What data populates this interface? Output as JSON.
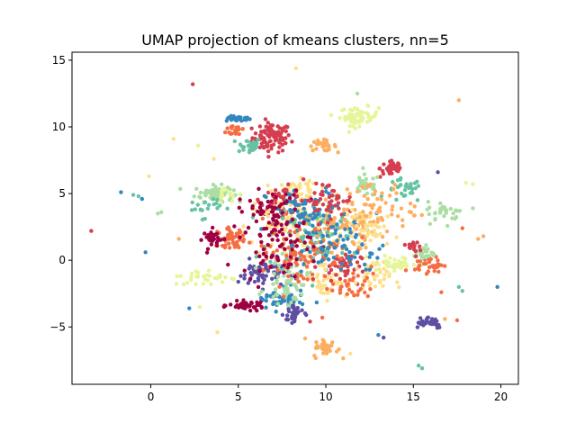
{
  "chart_data": {
    "type": "scatter",
    "title": "UMAP projection of kmeans clusters, nn=5",
    "xlabel": "",
    "ylabel": "",
    "xlim": [
      -4.5,
      21.0
    ],
    "ylim": [
      -9.3,
      15.6
    ],
    "xticks": [
      0,
      5,
      10,
      15,
      20
    ],
    "yticks": [
      -5,
      0,
      5,
      10,
      15
    ],
    "xtick_labels": [
      "0",
      "5",
      "10",
      "15",
      "20"
    ],
    "ytick_labels": [
      "−5",
      "0",
      "5",
      "10",
      "15"
    ],
    "grid": false,
    "legend": "none",
    "palette": "Spectral",
    "colors": [
      "#9e0142",
      "#d53e4f",
      "#f46d43",
      "#fdae61",
      "#fee08b",
      "#e6f598",
      "#abdda4",
      "#66c2a5",
      "#3288bd",
      "#5e4fa2"
    ],
    "clusters": [
      {
        "cx": 6.9,
        "cy": 9.2,
        "sx": 0.55,
        "sy": 0.55,
        "n": 90,
        "color": "#d53e4f"
      },
      {
        "cx": 5.0,
        "cy": 10.6,
        "sx": 0.35,
        "sy": 0.1,
        "n": 25,
        "color": "#3288bd"
      },
      {
        "cx": 5.6,
        "cy": 8.6,
        "sx": 0.35,
        "sy": 0.3,
        "n": 30,
        "color": "#66c2a5"
      },
      {
        "cx": 4.9,
        "cy": 9.8,
        "sx": 0.3,
        "sy": 0.25,
        "n": 20,
        "color": "#f46d43"
      },
      {
        "cx": 3.6,
        "cy": 5.0,
        "sx": 0.55,
        "sy": 0.3,
        "n": 70,
        "color": "#abdda4"
      },
      {
        "cx": 11.9,
        "cy": 10.8,
        "sx": 0.55,
        "sy": 0.35,
        "n": 60,
        "color": "#e6f598"
      },
      {
        "cx": 9.8,
        "cy": 8.6,
        "sx": 0.4,
        "sy": 0.2,
        "n": 30,
        "color": "#fdae61"
      },
      {
        "cx": 13.8,
        "cy": 6.9,
        "sx": 0.35,
        "sy": 0.35,
        "n": 35,
        "color": "#d53e4f"
      },
      {
        "cx": 12.3,
        "cy": 5.6,
        "sx": 0.4,
        "sy": 0.4,
        "n": 30,
        "color": "#abdda4"
      },
      {
        "cx": 14.5,
        "cy": 5.2,
        "sx": 0.5,
        "sy": 0.45,
        "n": 30,
        "color": "#66c2a5"
      },
      {
        "cx": 8.4,
        "cy": 5.2,
        "sx": 0.6,
        "sy": 0.4,
        "n": 50,
        "color": "#fee08b"
      },
      {
        "cx": 7.5,
        "cy": 4.5,
        "sx": 0.6,
        "sy": 0.5,
        "n": 60,
        "color": "#d53e4f"
      },
      {
        "cx": 8.0,
        "cy": 2.5,
        "sx": 1.3,
        "sy": 1.2,
        "n": 120,
        "color": "#fee08b"
      },
      {
        "cx": 9.5,
        "cy": 1.8,
        "sx": 1.4,
        "sy": 1.3,
        "n": 110,
        "color": "#66c2a5"
      },
      {
        "cx": 10.8,
        "cy": 2.8,
        "sx": 1.0,
        "sy": 1.0,
        "n": 80,
        "color": "#fdae61"
      },
      {
        "cx": 9.0,
        "cy": 3.5,
        "sx": 1.2,
        "sy": 0.9,
        "n": 80,
        "color": "#3288bd"
      },
      {
        "cx": 6.8,
        "cy": 3.6,
        "sx": 0.9,
        "sy": 0.8,
        "n": 60,
        "color": "#9e0142"
      },
      {
        "cx": 10.0,
        "cy": 4.5,
        "sx": 0.8,
        "sy": 0.7,
        "n": 50,
        "color": "#d53e4f"
      },
      {
        "cx": 12.6,
        "cy": 2.3,
        "sx": 0.8,
        "sy": 0.7,
        "n": 50,
        "color": "#fee08b"
      },
      {
        "cx": 4.6,
        "cy": 1.7,
        "sx": 0.4,
        "sy": 0.35,
        "n": 45,
        "color": "#f46d43"
      },
      {
        "cx": 3.6,
        "cy": 1.6,
        "sx": 0.3,
        "sy": 0.35,
        "n": 30,
        "color": "#9e0142"
      },
      {
        "cx": 3.0,
        "cy": 4.0,
        "sx": 0.5,
        "sy": 0.4,
        "n": 20,
        "color": "#66c2a5"
      },
      {
        "cx": 6.4,
        "cy": -1.0,
        "sx": 0.7,
        "sy": 0.5,
        "n": 60,
        "color": "#5e4fa2"
      },
      {
        "cx": 5.5,
        "cy": -3.4,
        "sx": 0.5,
        "sy": 0.15,
        "n": 50,
        "color": "#9e0142"
      },
      {
        "cx": 7.4,
        "cy": -3.0,
        "sx": 0.7,
        "sy": 0.4,
        "n": 50,
        "color": "#3288bd"
      },
      {
        "cx": 8.2,
        "cy": -4.0,
        "sx": 0.3,
        "sy": 0.5,
        "n": 30,
        "color": "#5e4fa2"
      },
      {
        "cx": 7.8,
        "cy": -1.6,
        "sx": 0.6,
        "sy": 0.8,
        "n": 60,
        "color": "#abdda4"
      },
      {
        "cx": 10.0,
        "cy": -1.4,
        "sx": 0.6,
        "sy": 0.7,
        "n": 50,
        "color": "#fee08b"
      },
      {
        "cx": 10.8,
        "cy": -0.5,
        "sx": 0.6,
        "sy": 0.6,
        "n": 40,
        "color": "#d53e4f"
      },
      {
        "cx": 12.5,
        "cy": -1.4,
        "sx": 0.6,
        "sy": 0.6,
        "n": 40,
        "color": "#fee08b"
      },
      {
        "cx": 11.5,
        "cy": -2.0,
        "sx": 0.6,
        "sy": 0.5,
        "n": 30,
        "color": "#f46d43"
      },
      {
        "cx": 14.0,
        "cy": -0.3,
        "sx": 0.7,
        "sy": 0.3,
        "n": 40,
        "color": "#e6f598"
      },
      {
        "cx": 15.9,
        "cy": -0.3,
        "sx": 0.4,
        "sy": 0.3,
        "n": 35,
        "color": "#f46d43"
      },
      {
        "cx": 15.6,
        "cy": 0.5,
        "sx": 0.3,
        "sy": 0.3,
        "n": 25,
        "color": "#abdda4"
      },
      {
        "cx": 15.3,
        "cy": 1.0,
        "sx": 0.3,
        "sy": 0.3,
        "n": 15,
        "color": "#d53e4f"
      },
      {
        "cx": 15.8,
        "cy": -4.6,
        "sx": 0.5,
        "sy": 0.25,
        "n": 35,
        "color": "#5e4fa2"
      },
      {
        "cx": 16.8,
        "cy": 3.6,
        "sx": 0.5,
        "sy": 0.4,
        "n": 30,
        "color": "#abdda4"
      },
      {
        "cx": 10.0,
        "cy": -6.6,
        "sx": 0.35,
        "sy": 0.35,
        "n": 40,
        "color": "#fdae61"
      },
      {
        "cx": 3.2,
        "cy": -1.3,
        "sx": 1.0,
        "sy": 0.3,
        "n": 30,
        "color": "#e6f598"
      },
      {
        "cx": 4.4,
        "cy": 5.0,
        "sx": 0.4,
        "sy": 0.3,
        "n": 15,
        "color": "#e6f598"
      },
      {
        "cx": 8.5,
        "cy": 0.5,
        "sx": 1.5,
        "sy": 1.2,
        "n": 90,
        "color": "#f46d43"
      },
      {
        "cx": 7.2,
        "cy": 1.0,
        "sx": 1.0,
        "sy": 1.0,
        "n": 60,
        "color": "#9e0142"
      },
      {
        "cx": 11.0,
        "cy": 0.8,
        "sx": 1.2,
        "sy": 1.0,
        "n": 60,
        "color": "#3288bd"
      },
      {
        "cx": 13.0,
        "cy": 4.0,
        "sx": 1.0,
        "sy": 1.0,
        "n": 50,
        "color": "#fdae61"
      }
    ],
    "points": [
      {
        "x": 8.3,
        "y": 14.4,
        "color": "#fee08b"
      },
      {
        "x": 2.4,
        "y": 13.2,
        "color": "#d53e4f"
      },
      {
        "x": 17.6,
        "y": 12.0,
        "color": "#fdae61"
      },
      {
        "x": 11.8,
        "y": 12.5,
        "color": "#abdda4"
      },
      {
        "x": 1.3,
        "y": 9.1,
        "color": "#fee08b"
      },
      {
        "x": 18.4,
        "y": 5.7,
        "color": "#e6f598"
      },
      {
        "x": 18.0,
        "y": 5.8,
        "color": "#e6f598"
      },
      {
        "x": -3.4,
        "y": 2.2,
        "color": "#d53e4f"
      },
      {
        "x": -1.7,
        "y": 5.1,
        "color": "#3288bd"
      },
      {
        "x": -1.0,
        "y": 4.9,
        "color": "#66c2a5"
      },
      {
        "x": -0.7,
        "y": 4.8,
        "color": "#66c2a5"
      },
      {
        "x": -0.5,
        "y": 4.6,
        "color": "#3288bd"
      },
      {
        "x": -0.3,
        "y": 0.6,
        "color": "#3288bd"
      },
      {
        "x": 0.4,
        "y": 3.5,
        "color": "#abdda4"
      },
      {
        "x": 0.6,
        "y": 3.6,
        "color": "#abdda4"
      },
      {
        "x": -0.1,
        "y": 6.3,
        "color": "#fee08b"
      },
      {
        "x": 18.7,
        "y": 1.6,
        "color": "#fdae61"
      },
      {
        "x": 19.0,
        "y": 1.8,
        "color": "#fdae61"
      },
      {
        "x": 19.8,
        "y": -2.0,
        "color": "#3288bd"
      },
      {
        "x": 17.6,
        "y": -2.0,
        "color": "#66c2a5"
      },
      {
        "x": 17.8,
        "y": -2.3,
        "color": "#66c2a5"
      },
      {
        "x": 15.3,
        "y": -7.9,
        "color": "#66c2a5"
      },
      {
        "x": 15.5,
        "y": -8.1,
        "color": "#66c2a5"
      },
      {
        "x": 11.4,
        "y": -7.0,
        "color": "#fee08b"
      },
      {
        "x": 3.8,
        "y": -5.4,
        "color": "#fee08b"
      },
      {
        "x": 2.2,
        "y": -3.6,
        "color": "#3288bd"
      },
      {
        "x": 2.8,
        "y": -3.5,
        "color": "#e6f598"
      },
      {
        "x": 13.0,
        "y": -5.6,
        "color": "#3288bd"
      },
      {
        "x": 13.3,
        "y": -5.8,
        "color": "#5e4fa2"
      },
      {
        "x": 16.8,
        "y": -4.4,
        "color": "#fdae61"
      },
      {
        "x": 17.5,
        "y": -4.5,
        "color": "#f46d43"
      },
      {
        "x": 16.6,
        "y": -2.4,
        "color": "#f46d43"
      },
      {
        "x": 18.4,
        "y": 3.9,
        "color": "#abdda4"
      },
      {
        "x": 17.8,
        "y": 2.4,
        "color": "#f46d43"
      },
      {
        "x": 16.4,
        "y": 6.6,
        "color": "#5e4fa2"
      },
      {
        "x": 1.6,
        "y": 1.6,
        "color": "#fdae61"
      },
      {
        "x": 1.5,
        "y": -1.2,
        "color": "#e6f598"
      },
      {
        "x": 2.7,
        "y": 8.6,
        "color": "#e6f598"
      },
      {
        "x": 3.6,
        "y": 7.6,
        "color": "#fee08b"
      },
      {
        "x": 9.1,
        "y": -4.6,
        "color": "#d53e4f"
      },
      {
        "x": 9.8,
        "y": -4.3,
        "color": "#f46d43"
      }
    ]
  }
}
